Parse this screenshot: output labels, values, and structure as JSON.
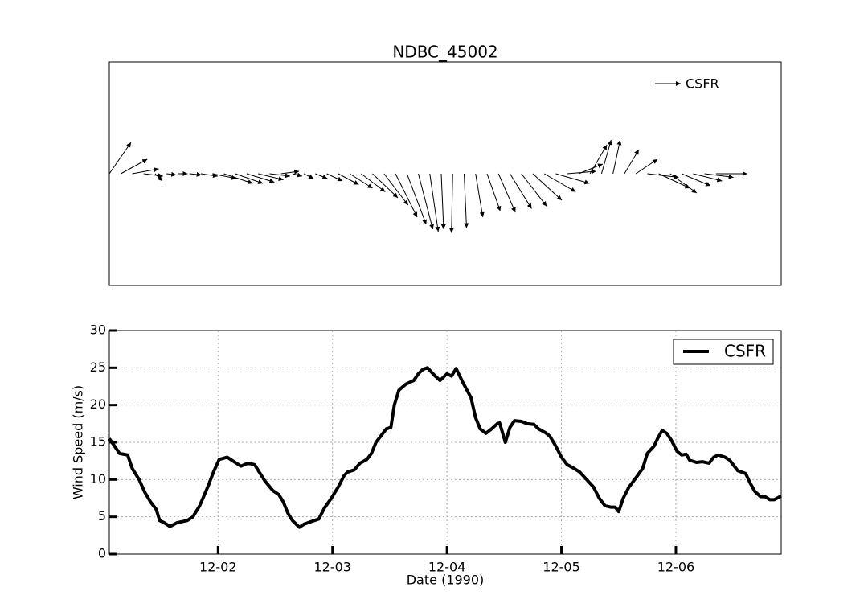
{
  "chart_data": [
    {
      "type": "quiver",
      "title": "NDBC_45002",
      "xlim": [
        1.05,
        6.92
      ],
      "legend": "upper right",
      "x": [
        1.05,
        1.15,
        1.25,
        1.35,
        1.45,
        1.55,
        1.65,
        1.75,
        1.85,
        1.95,
        2.05,
        2.15,
        2.25,
        2.35,
        2.45,
        2.55,
        2.65,
        2.75,
        2.85,
        2.95,
        3.05,
        3.15,
        3.25,
        3.35,
        3.45,
        3.55,
        3.65,
        3.75,
        3.85,
        3.95,
        4.05,
        4.15,
        4.25,
        4.35,
        4.45,
        4.55,
        4.65,
        4.75,
        4.85,
        4.95,
        5.05,
        5.15,
        5.25,
        5.35,
        5.45,
        5.55,
        5.65,
        5.75,
        5.85,
        5.95,
        6.05,
        6.15,
        6.25,
        6.35
      ],
      "series": [
        {
          "name": "CSFR",
          "color": "#000000",
          "u": [
            9,
            11,
            11,
            8,
            3,
            4,
            4,
            5,
            7,
            10,
            12,
            11.5,
            11.5,
            10.5,
            8.5,
            7.5,
            4,
            4,
            5,
            6.5,
            8.5,
            9.5,
            10,
            10.5,
            10,
            9,
            8,
            6,
            3.5,
            1,
            -0.5,
            1,
            3,
            5.5,
            7,
            9,
            10.5,
            12,
            13,
            14,
            12,
            10,
            7,
            4,
            3,
            6,
            9,
            13,
            13,
            11,
            12,
            12,
            12,
            13
          ],
          "v": [
            13,
            6,
            2,
            -1,
            -3,
            -0.5,
            0,
            -0.5,
            -1,
            -2,
            -4,
            -4,
            -3.5,
            -2.5,
            -1,
            1,
            -1,
            -2,
            -2,
            -3,
            -4.5,
            -6,
            -7.5,
            -10,
            -13,
            -18,
            -21,
            -23,
            -24,
            -23,
            -24.5,
            -22.5,
            -18,
            -15.5,
            -16,
            -14.5,
            -13.5,
            -11,
            -7.5,
            -4,
            1,
            4,
            12,
            14,
            14,
            10,
            6,
            -1.5,
            -6,
            -8,
            -5,
            -3,
            -1.5,
            0
          ]
        }
      ]
    },
    {
      "type": "line",
      "xlabel": "Date (1990)",
      "ylabel": "Wind Speed (m/s)",
      "grid": true,
      "legend": "upper right",
      "xlim": [
        1.05,
        6.92
      ],
      "ylim": [
        0,
        30
      ],
      "xticks": [
        {
          "value": 2,
          "label": "12-02"
        },
        {
          "value": 3,
          "label": "12-03"
        },
        {
          "value": 4,
          "label": "12-04"
        },
        {
          "value": 5,
          "label": "12-05"
        },
        {
          "value": 6,
          "label": "12-06"
        }
      ],
      "yticks": [
        0,
        5,
        10,
        15,
        20,
        25,
        30
      ],
      "x": [
        1.05,
        1.14,
        1.21,
        1.25,
        1.31,
        1.36,
        1.41,
        1.46,
        1.49,
        1.53,
        1.58,
        1.64,
        1.73,
        1.78,
        1.84,
        1.91,
        1.96,
        2.01,
        2.08,
        2.15,
        2.2,
        2.26,
        2.32,
        2.36,
        2.41,
        2.48,
        2.53,
        2.57,
        2.61,
        2.65,
        2.71,
        2.75,
        2.84,
        2.88,
        2.93,
        2.99,
        3.05,
        3.1,
        3.13,
        3.19,
        3.24,
        3.3,
        3.34,
        3.38,
        3.43,
        3.47,
        3.51,
        3.54,
        3.58,
        3.64,
        3.71,
        3.75,
        3.79,
        3.83,
        3.89,
        3.94,
        4.0,
        4.04,
        4.08,
        4.14,
        4.21,
        4.25,
        4.29,
        4.34,
        4.39,
        4.44,
        4.46,
        4.51,
        4.55,
        4.59,
        4.65,
        4.7,
        4.76,
        4.8,
        4.86,
        4.9,
        4.95,
        5.0,
        5.05,
        5.11,
        5.16,
        5.22,
        5.28,
        5.33,
        5.38,
        5.43,
        5.47,
        5.5,
        5.54,
        5.59,
        5.64,
        5.71,
        5.75,
        5.81,
        5.84,
        5.88,
        5.92,
        5.96,
        6.01,
        6.05,
        6.09,
        6.12,
        6.18,
        6.23,
        6.29,
        6.33,
        6.37,
        6.43,
        6.47,
        6.51,
        6.54,
        6.61,
        6.65,
        6.69,
        6.74,
        6.78,
        6.82,
        6.86,
        6.92
      ],
      "series": [
        {
          "name": "CSFR",
          "color": "#000000",
          "values": [
            15.5,
            13.5,
            13.3,
            11.5,
            10,
            8.3,
            7,
            6,
            4.5,
            4.2,
            3.7,
            4.2,
            4.5,
            5,
            6.5,
            9,
            11,
            12.7,
            13,
            12.3,
            11.8,
            12.2,
            12,
            11,
            9.8,
            8.5,
            8,
            7,
            5.5,
            4.5,
            3.6,
            4,
            4.5,
            4.7,
            6.2,
            7.5,
            9,
            10.5,
            11,
            11.3,
            12.2,
            12.7,
            13.5,
            15,
            16,
            16.8,
            17,
            20,
            22,
            22.8,
            23.3,
            24.2,
            24.8,
            25,
            24,
            23.3,
            24.2,
            23.9,
            24.9,
            23,
            21,
            18.3,
            16.8,
            16.2,
            16.8,
            17.5,
            17.6,
            15,
            17,
            17.9,
            17.8,
            17.5,
            17.4,
            16.8,
            16.3,
            15.8,
            14.5,
            13,
            12,
            11.5,
            11,
            10,
            9,
            7.5,
            6.5,
            6.3,
            6.3,
            5.7,
            7.5,
            9,
            10,
            11.5,
            13.5,
            14.5,
            15.5,
            16.6,
            16.2,
            15.3,
            13.8,
            13.3,
            13.4,
            12.6,
            12.3,
            12.4,
            12.2,
            13,
            13.3,
            13,
            12.6,
            11.8,
            11.2,
            10.8,
            9.5,
            8.4,
            7.7,
            7.7,
            7.3,
            7.3,
            7.8
          ]
        }
      ]
    }
  ]
}
